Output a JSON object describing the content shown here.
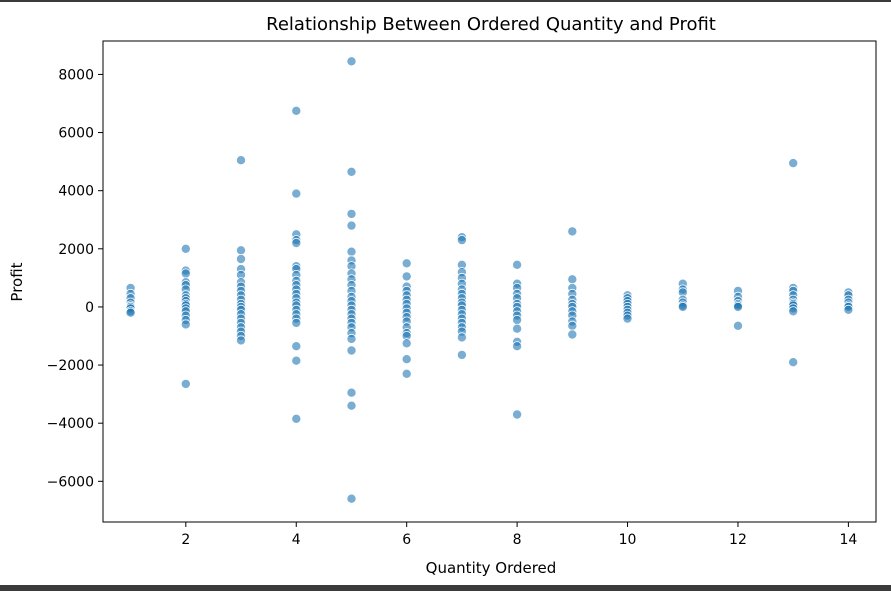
{
  "chart_data": {
    "type": "scatter",
    "title": "Relationship Between Ordered Quantity and Profit",
    "xlabel": "Quantity Ordered",
    "ylabel": "Profit",
    "xlim": [
      0.5,
      14.5
    ],
    "ylim": [
      -7400,
      9150
    ],
    "xticks": [
      2,
      4,
      6,
      8,
      10,
      12,
      14
    ],
    "yticks": [
      -6000,
      -4000,
      -2000,
      0,
      2000,
      4000,
      6000,
      8000
    ],
    "xtick_labels": [
      "2",
      "4",
      "6",
      "8",
      "10",
      "12",
      "14"
    ],
    "ytick_labels": [
      "−6000",
      "−4000",
      "−2000",
      "0",
      "2000",
      "4000",
      "6000",
      "8000"
    ],
    "grid": false,
    "marker_color": "#1f77b4",
    "marker_alpha": 0.6,
    "points": [
      {
        "x": 1,
        "y": 650
      },
      {
        "x": 1,
        "y": 450
      },
      {
        "x": 1,
        "y": 300
      },
      {
        "x": 1,
        "y": 150
      },
      {
        "x": 1,
        "y": 50
      },
      {
        "x": 1,
        "y": 0
      },
      {
        "x": 1,
        "y": -50
      },
      {
        "x": 1,
        "y": -150
      },
      {
        "x": 1,
        "y": -200
      },
      {
        "x": 2,
        "y": 2000
      },
      {
        "x": 2,
        "y": 1250
      },
      {
        "x": 2,
        "y": 1150
      },
      {
        "x": 2,
        "y": 850
      },
      {
        "x": 2,
        "y": 750
      },
      {
        "x": 2,
        "y": 600
      },
      {
        "x": 2,
        "y": 400
      },
      {
        "x": 2,
        "y": 300
      },
      {
        "x": 2,
        "y": 200
      },
      {
        "x": 2,
        "y": 100
      },
      {
        "x": 2,
        "y": 50
      },
      {
        "x": 2,
        "y": -50
      },
      {
        "x": 2,
        "y": -150
      },
      {
        "x": 2,
        "y": -300
      },
      {
        "x": 2,
        "y": -450
      },
      {
        "x": 2,
        "y": -600
      },
      {
        "x": 2,
        "y": -2650
      },
      {
        "x": 3,
        "y": 5050
      },
      {
        "x": 3,
        "y": 1950
      },
      {
        "x": 3,
        "y": 1650
      },
      {
        "x": 3,
        "y": 1300
      },
      {
        "x": 3,
        "y": 1100
      },
      {
        "x": 3,
        "y": 850
      },
      {
        "x": 3,
        "y": 700
      },
      {
        "x": 3,
        "y": 550
      },
      {
        "x": 3,
        "y": 400
      },
      {
        "x": 3,
        "y": 250
      },
      {
        "x": 3,
        "y": 100
      },
      {
        "x": 3,
        "y": 0
      },
      {
        "x": 3,
        "y": -100
      },
      {
        "x": 3,
        "y": -250
      },
      {
        "x": 3,
        "y": -400
      },
      {
        "x": 3,
        "y": -550
      },
      {
        "x": 3,
        "y": -700
      },
      {
        "x": 3,
        "y": -850
      },
      {
        "x": 3,
        "y": -1000
      },
      {
        "x": 3,
        "y": -1150
      },
      {
        "x": 4,
        "y": 6750
      },
      {
        "x": 4,
        "y": 3900
      },
      {
        "x": 4,
        "y": 2500
      },
      {
        "x": 4,
        "y": 2300
      },
      {
        "x": 4,
        "y": 2200
      },
      {
        "x": 4,
        "y": 1400
      },
      {
        "x": 4,
        "y": 1300
      },
      {
        "x": 4,
        "y": 1100
      },
      {
        "x": 4,
        "y": 900
      },
      {
        "x": 4,
        "y": 750
      },
      {
        "x": 4,
        "y": 600
      },
      {
        "x": 4,
        "y": 450
      },
      {
        "x": 4,
        "y": 300
      },
      {
        "x": 4,
        "y": 150
      },
      {
        "x": 4,
        "y": 50
      },
      {
        "x": 4,
        "y": -100
      },
      {
        "x": 4,
        "y": -250
      },
      {
        "x": 4,
        "y": -400
      },
      {
        "x": 4,
        "y": -550
      },
      {
        "x": 4,
        "y": -1350
      },
      {
        "x": 4,
        "y": -1850
      },
      {
        "x": 4,
        "y": -3850
      },
      {
        "x": 5,
        "y": 8450
      },
      {
        "x": 5,
        "y": 4650
      },
      {
        "x": 5,
        "y": 3200
      },
      {
        "x": 5,
        "y": 2800
      },
      {
        "x": 5,
        "y": 1900
      },
      {
        "x": 5,
        "y": 1600
      },
      {
        "x": 5,
        "y": 1400
      },
      {
        "x": 5,
        "y": 1150
      },
      {
        "x": 5,
        "y": 950
      },
      {
        "x": 5,
        "y": 750
      },
      {
        "x": 5,
        "y": 550
      },
      {
        "x": 5,
        "y": 350
      },
      {
        "x": 5,
        "y": 200
      },
      {
        "x": 5,
        "y": 50
      },
      {
        "x": 5,
        "y": -100
      },
      {
        "x": 5,
        "y": -250
      },
      {
        "x": 5,
        "y": -400
      },
      {
        "x": 5,
        "y": -550
      },
      {
        "x": 5,
        "y": -700
      },
      {
        "x": 5,
        "y": -900
      },
      {
        "x": 5,
        "y": -1100
      },
      {
        "x": 5,
        "y": -1500
      },
      {
        "x": 5,
        "y": -2950
      },
      {
        "x": 5,
        "y": -3400
      },
      {
        "x": 5,
        "y": -6600
      },
      {
        "x": 6,
        "y": 1500
      },
      {
        "x": 6,
        "y": 1050
      },
      {
        "x": 6,
        "y": 700
      },
      {
        "x": 6,
        "y": 550
      },
      {
        "x": 6,
        "y": 400
      },
      {
        "x": 6,
        "y": 250
      },
      {
        "x": 6,
        "y": 100
      },
      {
        "x": 6,
        "y": -50
      },
      {
        "x": 6,
        "y": -200
      },
      {
        "x": 6,
        "y": -350
      },
      {
        "x": 6,
        "y": -500
      },
      {
        "x": 6,
        "y": -700
      },
      {
        "x": 6,
        "y": -900
      },
      {
        "x": 6,
        "y": -1000
      },
      {
        "x": 6,
        "y": -1250
      },
      {
        "x": 6,
        "y": -1800
      },
      {
        "x": 6,
        "y": -2300
      },
      {
        "x": 7,
        "y": 2400
      },
      {
        "x": 7,
        "y": 2300
      },
      {
        "x": 7,
        "y": 1450
      },
      {
        "x": 7,
        "y": 1200
      },
      {
        "x": 7,
        "y": 1000
      },
      {
        "x": 7,
        "y": 800
      },
      {
        "x": 7,
        "y": 600
      },
      {
        "x": 7,
        "y": 450
      },
      {
        "x": 7,
        "y": 300
      },
      {
        "x": 7,
        "y": 150
      },
      {
        "x": 7,
        "y": 50
      },
      {
        "x": 7,
        "y": -100
      },
      {
        "x": 7,
        "y": -250
      },
      {
        "x": 7,
        "y": -400
      },
      {
        "x": 7,
        "y": -550
      },
      {
        "x": 7,
        "y": -700
      },
      {
        "x": 7,
        "y": -850
      },
      {
        "x": 7,
        "y": -1050
      },
      {
        "x": 7,
        "y": -1650
      },
      {
        "x": 8,
        "y": 1450
      },
      {
        "x": 8,
        "y": 800
      },
      {
        "x": 8,
        "y": 650
      },
      {
        "x": 8,
        "y": 450
      },
      {
        "x": 8,
        "y": 300
      },
      {
        "x": 8,
        "y": 100
      },
      {
        "x": 8,
        "y": 0
      },
      {
        "x": 8,
        "y": -150
      },
      {
        "x": 8,
        "y": -300
      },
      {
        "x": 8,
        "y": -450
      },
      {
        "x": 8,
        "y": -750
      },
      {
        "x": 8,
        "y": -1200
      },
      {
        "x": 8,
        "y": -1350
      },
      {
        "x": 8,
        "y": -3700
      },
      {
        "x": 9,
        "y": 2600
      },
      {
        "x": 9,
        "y": 950
      },
      {
        "x": 9,
        "y": 650
      },
      {
        "x": 9,
        "y": 450
      },
      {
        "x": 9,
        "y": 250
      },
      {
        "x": 9,
        "y": 100
      },
      {
        "x": 9,
        "y": 0
      },
      {
        "x": 9,
        "y": -150
      },
      {
        "x": 9,
        "y": -300
      },
      {
        "x": 9,
        "y": -500
      },
      {
        "x": 9,
        "y": -650
      },
      {
        "x": 9,
        "y": -950
      },
      {
        "x": 10,
        "y": 400
      },
      {
        "x": 10,
        "y": 300
      },
      {
        "x": 10,
        "y": 200
      },
      {
        "x": 10,
        "y": 100
      },
      {
        "x": 10,
        "y": 0
      },
      {
        "x": 10,
        "y": -100
      },
      {
        "x": 10,
        "y": -200
      },
      {
        "x": 10,
        "y": -300
      },
      {
        "x": 10,
        "y": -400
      },
      {
        "x": 11,
        "y": 800
      },
      {
        "x": 11,
        "y": 600
      },
      {
        "x": 11,
        "y": 500
      },
      {
        "x": 11,
        "y": 250
      },
      {
        "x": 11,
        "y": 150
      },
      {
        "x": 11,
        "y": 50
      },
      {
        "x": 11,
        "y": 0
      },
      {
        "x": 12,
        "y": 550
      },
      {
        "x": 12,
        "y": 350
      },
      {
        "x": 12,
        "y": 200
      },
      {
        "x": 12,
        "y": 100
      },
      {
        "x": 12,
        "y": 50
      },
      {
        "x": 12,
        "y": 0
      },
      {
        "x": 12,
        "y": -650
      },
      {
        "x": 13,
        "y": 4950
      },
      {
        "x": 13,
        "y": 650
      },
      {
        "x": 13,
        "y": 550
      },
      {
        "x": 13,
        "y": 400
      },
      {
        "x": 13,
        "y": 250
      },
      {
        "x": 13,
        "y": 150
      },
      {
        "x": 13,
        "y": 100
      },
      {
        "x": 13,
        "y": 50
      },
      {
        "x": 13,
        "y": -50
      },
      {
        "x": 13,
        "y": -150
      },
      {
        "x": 13,
        "y": -1900
      },
      {
        "x": 14,
        "y": 500
      },
      {
        "x": 14,
        "y": 400
      },
      {
        "x": 14,
        "y": 250
      },
      {
        "x": 14,
        "y": 150
      },
      {
        "x": 14,
        "y": 50
      },
      {
        "x": 14,
        "y": 0
      },
      {
        "x": 14,
        "y": -100
      }
    ]
  }
}
